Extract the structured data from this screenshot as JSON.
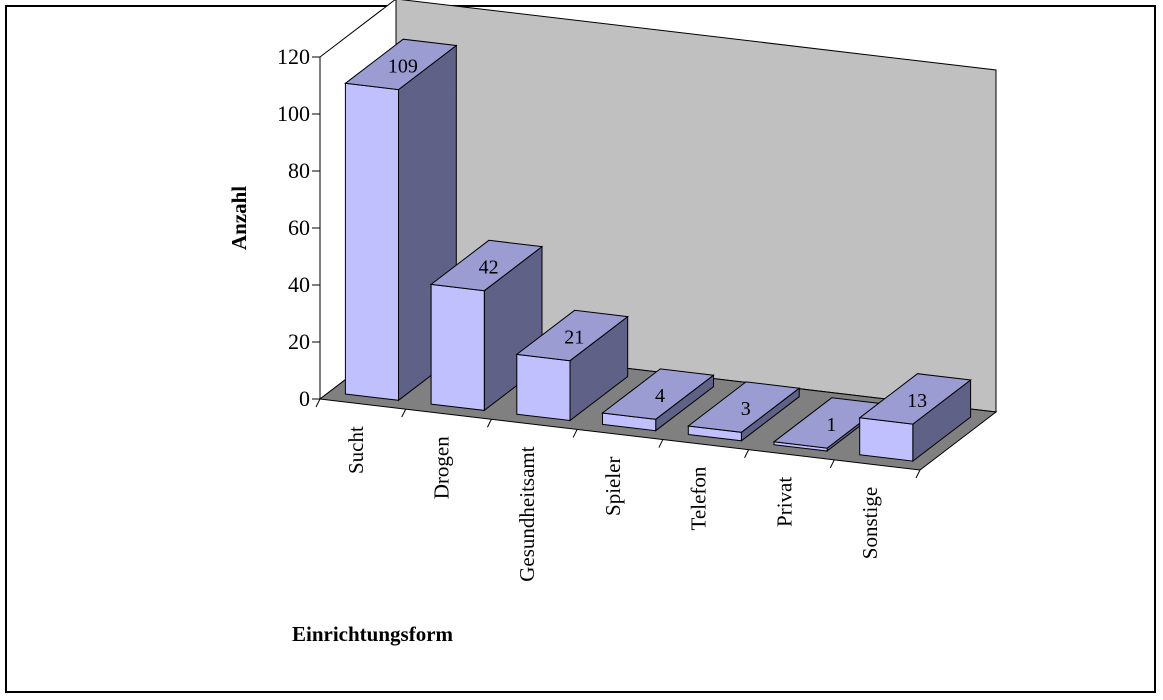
{
  "chart_data": {
    "type": "bar",
    "categories": [
      "Sucht",
      "Drogen",
      "Gesundheitsamt",
      "Spieler",
      "Telefon",
      "Privat",
      "Sonstige"
    ],
    "values": [
      109,
      42,
      21,
      4,
      3,
      1,
      13
    ],
    "data_labels": [
      "109",
      "42",
      "21",
      "4",
      "3",
      "1",
      "13"
    ],
    "xlabel": "Einrichtungsform",
    "ylabel": "Anzahl",
    "ylim": [
      0,
      120
    ],
    "yticks": [
      0,
      20,
      40,
      60,
      80,
      100,
      120
    ],
    "ytick_labels": [
      "0",
      "20",
      "40",
      "60",
      "80",
      "100",
      "120"
    ],
    "style": "3d-column",
    "grid": false,
    "legend": "none",
    "colors": {
      "bar_front": "#c0c0ff",
      "bar_side": "#5f6187",
      "bar_top": "#9a9cd2",
      "back_wall": "#c0c0c0",
      "floor": "#808080"
    }
  }
}
